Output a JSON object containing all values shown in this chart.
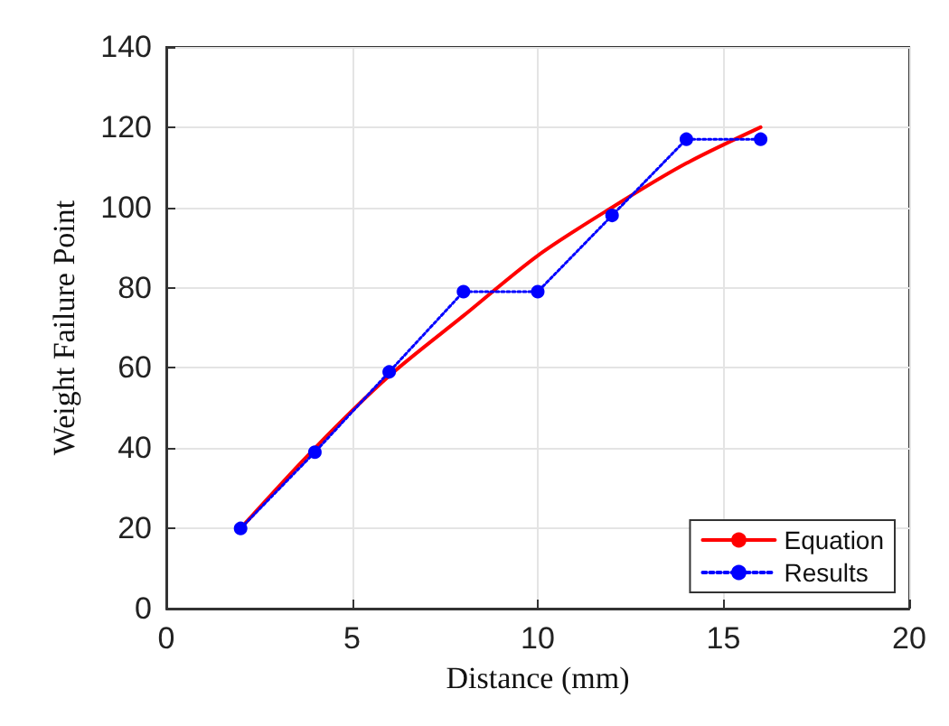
{
  "chart_data": {
    "type": "line",
    "xlabel": "Distance (mm)",
    "ylabel": "Weight Failure Point",
    "xlim": [
      0,
      20
    ],
    "xticks": [
      0,
      5,
      10,
      15,
      20
    ],
    "ylim": [
      0,
      140
    ],
    "yticks": [
      0,
      20,
      40,
      60,
      80,
      100,
      120,
      140
    ],
    "grid": true,
    "legend": "bottom right",
    "series": [
      {
        "name": "Equation",
        "color": "#ff0000",
        "x": [
          2,
          4,
          6,
          8,
          10,
          12,
          14,
          16
        ],
        "values": [
          20,
          40,
          58,
          73,
          88,
          100,
          111,
          120
        ],
        "marker": "none",
        "line_style": "solid"
      },
      {
        "name": "Results",
        "color": "#0000ff",
        "x": [
          2,
          4,
          6,
          8,
          10,
          12,
          14,
          16
        ],
        "values": [
          20,
          39,
          59,
          79,
          79,
          98,
          117,
          117
        ],
        "marker": "circle",
        "line_style": "dotted"
      }
    ]
  }
}
